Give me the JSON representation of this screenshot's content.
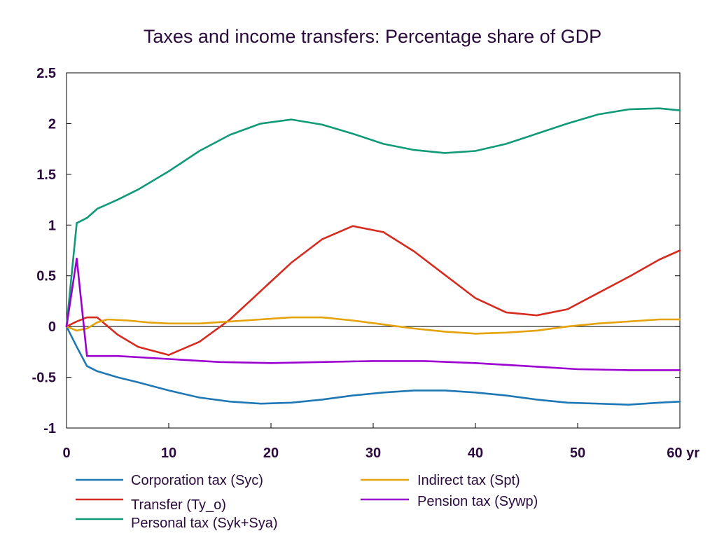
{
  "chart_data": {
    "type": "line",
    "title": "Taxes and income transfers: Percentage share of GDP",
    "xlabel": "",
    "ylabel": "",
    "xlim": [
      0,
      60
    ],
    "ylim": [
      -1,
      2.5
    ],
    "x_ticks": [
      0,
      10,
      20,
      30,
      40,
      50,
      60
    ],
    "x_tick_labels": [
      "0",
      "10",
      "20",
      "30",
      "40",
      "50",
      "60 yr"
    ],
    "y_ticks": [
      -1,
      -0.5,
      0,
      0.5,
      1,
      1.5,
      2,
      2.5
    ],
    "y_tick_labels": [
      "-1",
      "-0.5",
      "0",
      "0.5",
      "1",
      "1.5",
      "2",
      "2.5"
    ],
    "grid": false,
    "zero_line": true,
    "legend_position": "bottom",
    "series": [
      {
        "name": "Corporation tax (Syc)",
        "color": "#1f78b4",
        "x": [
          0,
          1,
          2,
          3,
          5,
          7,
          10,
          13,
          16,
          19,
          22,
          25,
          28,
          31,
          34,
          37,
          40,
          43,
          46,
          49,
          52,
          55,
          58,
          60
        ],
        "y": [
          0,
          -0.2,
          -0.39,
          -0.44,
          -0.5,
          -0.55,
          -0.63,
          -0.7,
          -0.74,
          -0.76,
          -0.75,
          -0.72,
          -0.68,
          -0.65,
          -0.63,
          -0.63,
          -0.65,
          -0.68,
          -0.72,
          -0.75,
          -0.76,
          -0.77,
          -0.75,
          -0.74
        ]
      },
      {
        "name": "Transfer (Ty_o)",
        "color": "#d62b1f",
        "x": [
          0,
          1,
          2,
          3,
          5,
          7,
          10,
          13,
          16,
          19,
          22,
          25,
          28,
          31,
          34,
          37,
          40,
          43,
          46,
          49,
          52,
          55,
          58,
          60
        ],
        "y": [
          0,
          0.05,
          0.09,
          0.09,
          -0.08,
          -0.2,
          -0.28,
          -0.15,
          0.07,
          0.35,
          0.63,
          0.86,
          0.99,
          0.93,
          0.74,
          0.51,
          0.28,
          0.14,
          0.11,
          0.17,
          0.33,
          0.49,
          0.66,
          0.75
        ]
      },
      {
        "name": "Personal tax (Syk+Sya)",
        "color": "#109a78",
        "x": [
          0,
          1,
          2,
          3,
          5,
          7,
          10,
          13,
          16,
          19,
          22,
          25,
          28,
          31,
          34,
          37,
          40,
          43,
          46,
          49,
          52,
          55,
          58,
          60
        ],
        "y": [
          0,
          1.02,
          1.07,
          1.16,
          1.25,
          1.35,
          1.53,
          1.73,
          1.89,
          2.0,
          2.04,
          1.99,
          1.9,
          1.8,
          1.74,
          1.71,
          1.73,
          1.8,
          1.9,
          2.0,
          2.09,
          2.14,
          2.15,
          2.13
        ]
      },
      {
        "name": "Indirect tax (Spt)",
        "color": "#e4a20b",
        "x": [
          0,
          1,
          2,
          3,
          4,
          6,
          8,
          10,
          13,
          16,
          19,
          22,
          25,
          28,
          31,
          34,
          37,
          40,
          43,
          46,
          49,
          52,
          55,
          58,
          60
        ],
        "y": [
          0,
          -0.04,
          -0.02,
          0.04,
          0.07,
          0.06,
          0.04,
          0.03,
          0.03,
          0.05,
          0.07,
          0.09,
          0.09,
          0.06,
          0.02,
          -0.02,
          -0.05,
          -0.07,
          -0.06,
          -0.04,
          0.0,
          0.03,
          0.05,
          0.07,
          0.07
        ]
      },
      {
        "name": "Pension tax (Sywp)",
        "color": "#9b00d0",
        "x": [
          0,
          1,
          2,
          5,
          10,
          15,
          20,
          25,
          30,
          35,
          40,
          45,
          50,
          55,
          60
        ],
        "y": [
          0,
          0.67,
          -0.29,
          -0.29,
          -0.32,
          -0.35,
          -0.36,
          -0.35,
          -0.34,
          -0.34,
          -0.36,
          -0.39,
          -0.42,
          -0.43,
          -0.43
        ]
      }
    ]
  }
}
